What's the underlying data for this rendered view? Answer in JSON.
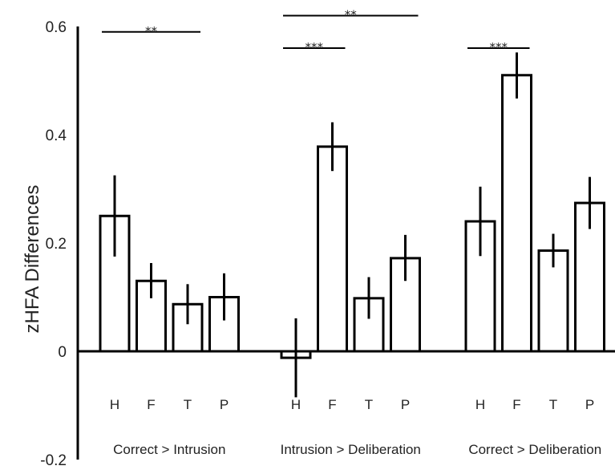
{
  "chart_data": {
    "type": "bar",
    "title": "",
    "xlabel": "",
    "ylabel": "zHFA Differences",
    "ylim": [
      -0.2,
      0.6
    ],
    "yticks": [
      {
        "value": 0.6,
        "label": "0.6"
      },
      {
        "value": 0.4,
        "label": "0.4"
      },
      {
        "value": 0.2,
        "label": "0.2"
      },
      {
        "value": 0,
        "label": "0"
      },
      {
        "value": -0.2,
        "label": "-0.2"
      }
    ],
    "grid": false,
    "legend": "none",
    "colors": {
      "bar_fill": "#ffffff",
      "stroke": "#000000"
    },
    "groups": [
      {
        "label": "Correct > Intrusion",
        "bars": [
          {
            "category": "H",
            "value": 0.25,
            "err_low": 0.175,
            "err_high": 0.325
          },
          {
            "category": "F",
            "value": 0.13,
            "err_low": 0.098,
            "err_high": 0.163
          },
          {
            "category": "T",
            "value": 0.087,
            "err_low": 0.05,
            "err_high": 0.124
          },
          {
            "category": "P",
            "value": 0.1,
            "err_low": 0.057,
            "err_high": 0.144
          }
        ]
      },
      {
        "label": "Intrusion > Deliberation",
        "bars": [
          {
            "category": "H",
            "value": -0.012,
            "err_low": -0.085,
            "err_high": 0.061
          },
          {
            "category": "F",
            "value": 0.378,
            "err_low": 0.333,
            "err_high": 0.423
          },
          {
            "category": "T",
            "value": 0.098,
            "err_low": 0.06,
            "err_high": 0.137
          },
          {
            "category": "P",
            "value": 0.172,
            "err_low": 0.13,
            "err_high": 0.215
          }
        ]
      },
      {
        "label": "Correct > Deliberation",
        "bars": [
          {
            "category": "H",
            "value": 0.24,
            "err_low": 0.176,
            "err_high": 0.304
          },
          {
            "category": "F",
            "value": 0.51,
            "err_low": 0.467,
            "err_high": 0.552
          },
          {
            "category": "T",
            "value": 0.186,
            "err_low": 0.155,
            "err_high": 0.217
          },
          {
            "category": "P",
            "value": 0.274,
            "err_low": 0.226,
            "err_high": 0.322
          }
        ]
      }
    ],
    "significance": [
      {
        "label": "**",
        "group": 0,
        "from_bar": 0,
        "to_bar": 2,
        "y": 0.59
      },
      {
        "label": "***",
        "group": 1,
        "from_bar": 0,
        "to_bar": 1,
        "y": 0.56
      },
      {
        "label": "**",
        "group": 1,
        "from_bar": 0,
        "to_bar": 3,
        "y": 0.62
      },
      {
        "label": "***",
        "group": 2,
        "from_bar": 0,
        "to_bar": 1,
        "y": 0.56
      }
    ]
  }
}
